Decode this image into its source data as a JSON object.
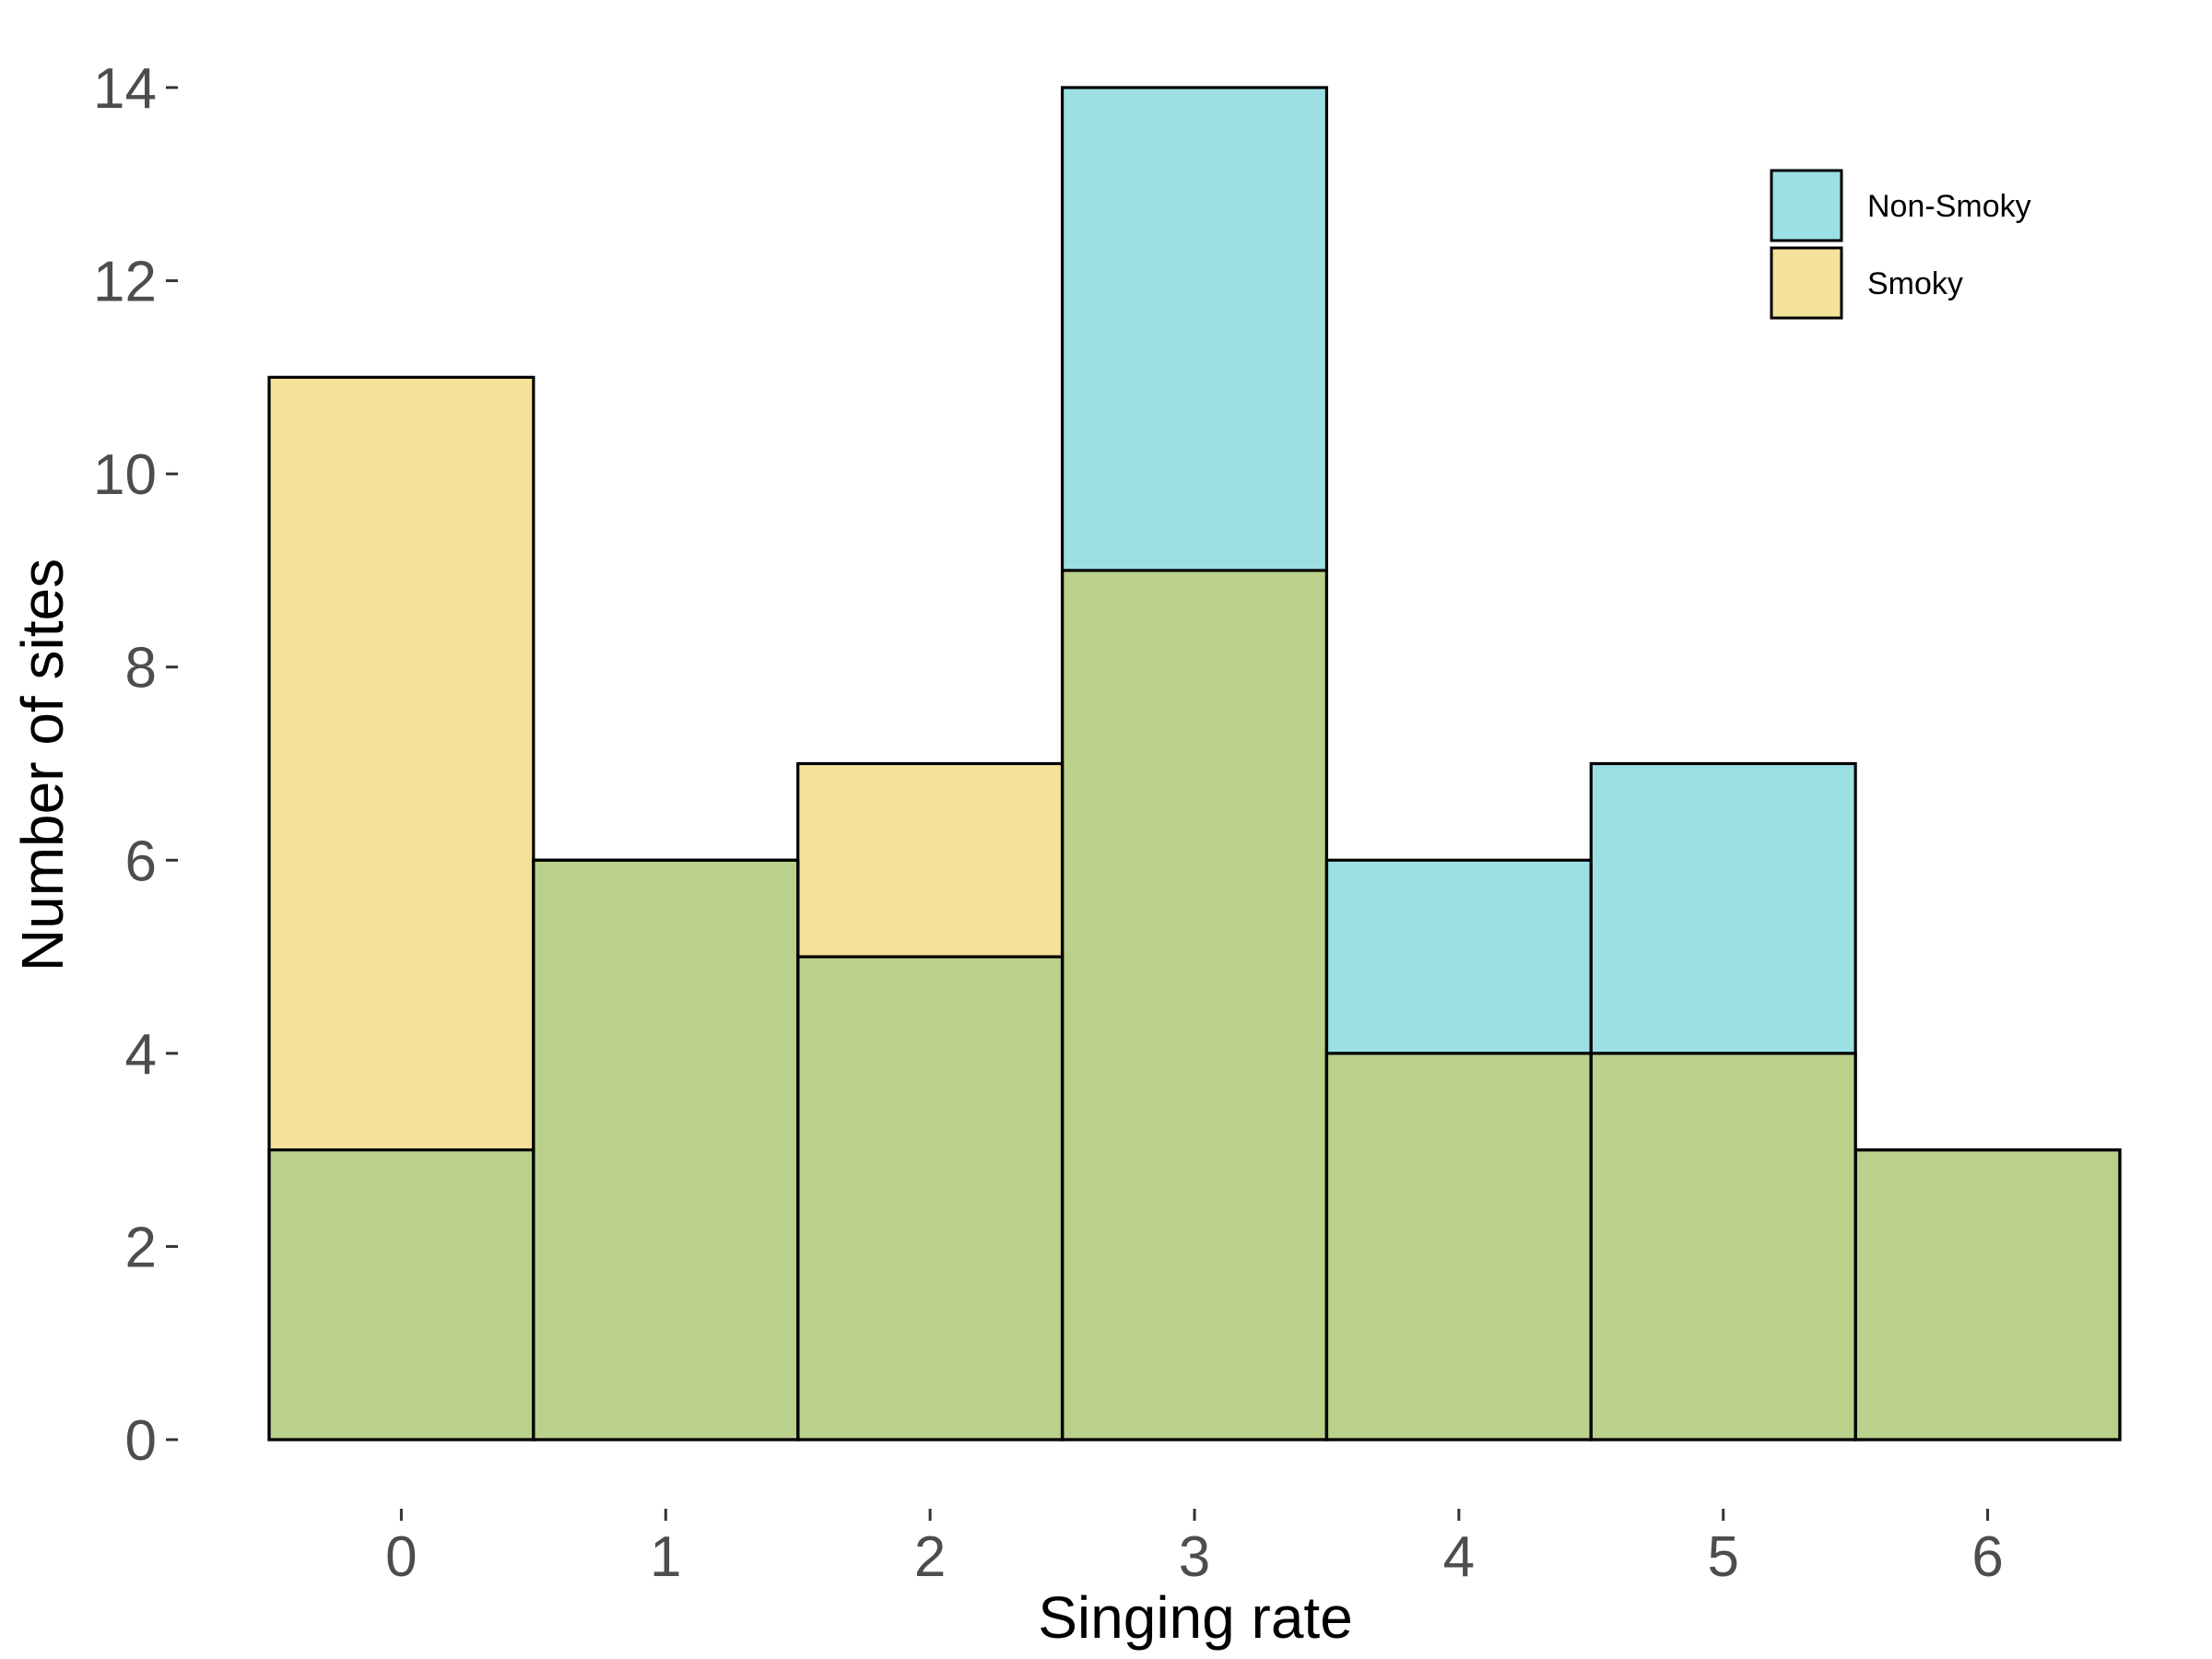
{
  "chart_data": {
    "type": "bar",
    "title": "",
    "xlabel": "Singing rate",
    "ylabel": "Number of sites",
    "categories": [
      "0",
      "1",
      "2",
      "3",
      "4",
      "5",
      "6"
    ],
    "x_ticks": [
      "0",
      "1",
      "2",
      "3",
      "4",
      "5",
      "6"
    ],
    "y_ticks": [
      "0",
      "2",
      "4",
      "6",
      "8",
      "10",
      "12",
      "14"
    ],
    "ylim": [
      0,
      14
    ],
    "grid": false,
    "legend_position": "top-right",
    "overlay": true,
    "series": [
      {
        "name": "Non-Smoky",
        "color": "#9ce0e4",
        "values": [
          3,
          6,
          5,
          14,
          6,
          7,
          3
        ]
      },
      {
        "name": "Smoky",
        "color": "#f4e29a",
        "values": [
          11,
          6,
          7,
          9,
          4,
          4,
          3
        ]
      }
    ],
    "overlap_color": "#bad18b"
  }
}
